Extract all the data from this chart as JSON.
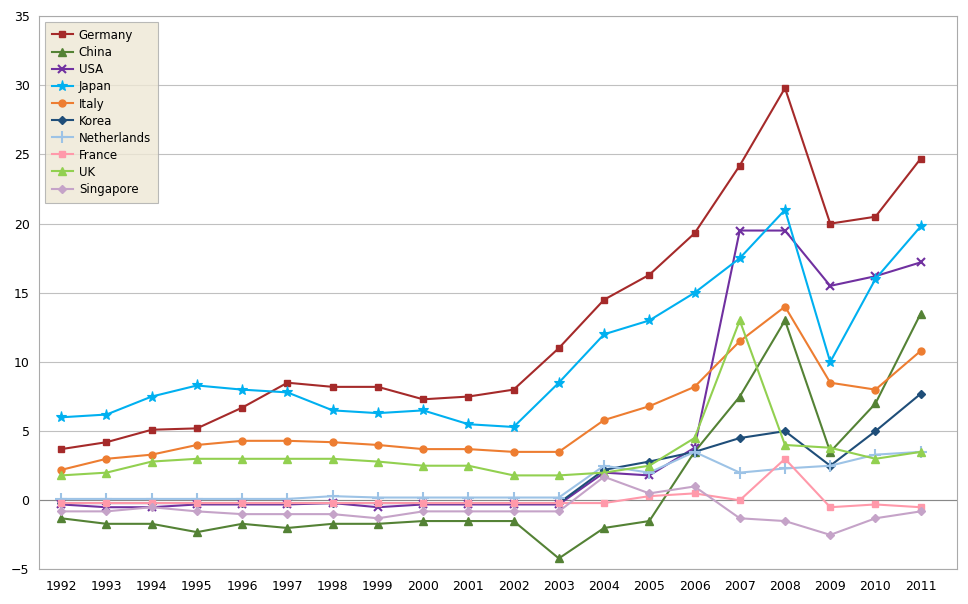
{
  "years": [
    1992,
    1993,
    1994,
    1995,
    1996,
    1997,
    1998,
    1999,
    2000,
    2001,
    2002,
    2003,
    2004,
    2005,
    2006,
    2007,
    2008,
    2009,
    2010,
    2011
  ],
  "series": {
    "Germany": {
      "color": "#A52A2A",
      "marker": "s",
      "markersize": 5,
      "data": [
        3.7,
        4.2,
        5.1,
        5.2,
        6.7,
        8.5,
        8.2,
        8.2,
        7.3,
        7.5,
        8.0,
        11.0,
        14.5,
        16.3,
        19.3,
        24.2,
        29.8,
        20.0,
        20.5,
        24.7
      ]
    },
    "China": {
      "color": "#548235",
      "marker": "^",
      "markersize": 6,
      "data": [
        -1.3,
        -1.7,
        -1.7,
        -2.3,
        -1.7,
        -2.0,
        -1.7,
        -1.7,
        -1.5,
        -1.5,
        -1.5,
        -4.2,
        -2.0,
        -1.5,
        3.5,
        7.5,
        13.0,
        3.5,
        7.0,
        13.5
      ]
    },
    "USA": {
      "color": "#7030A0",
      "marker": "x",
      "markersize": 6,
      "data": [
        -0.3,
        -0.5,
        -0.5,
        -0.3,
        -0.3,
        -0.3,
        -0.2,
        -0.5,
        -0.3,
        -0.3,
        -0.3,
        -0.3,
        2.0,
        1.8,
        3.8,
        19.5,
        19.5,
        15.5,
        16.2,
        17.2
      ]
    },
    "Japan": {
      "color": "#00B0F0",
      "marker": "*",
      "markersize": 7,
      "data": [
        6.0,
        6.2,
        7.5,
        8.3,
        8.0,
        7.8,
        6.5,
        6.3,
        6.5,
        5.5,
        5.3,
        8.5,
        12.0,
        13.0,
        15.0,
        17.5,
        21.0,
        10.0,
        16.0,
        19.8
      ]
    },
    "Italy": {
      "color": "#ED7D31",
      "marker": "o",
      "markersize": 5,
      "data": [
        2.2,
        3.0,
        3.3,
        4.0,
        4.3,
        4.3,
        4.2,
        4.0,
        3.7,
        3.7,
        3.5,
        3.5,
        5.8,
        6.8,
        8.2,
        11.5,
        14.0,
        8.5,
        8.0,
        10.8
      ]
    },
    "Korea": {
      "color": "#1F4E79",
      "marker": "D",
      "markersize": 4,
      "data": [
        -0.2,
        -0.2,
        -0.2,
        -0.2,
        -0.2,
        -0.2,
        -0.2,
        -0.2,
        -0.2,
        -0.2,
        -0.2,
        -0.2,
        2.2,
        2.8,
        3.5,
        4.5,
        5.0,
        2.5,
        5.0,
        7.7
      ]
    },
    "Netherlands": {
      "color": "#9DC3E6",
      "marker": "+",
      "markersize": 7,
      "data": [
        0.1,
        0.1,
        0.1,
        0.1,
        0.1,
        0.1,
        0.3,
        0.2,
        0.2,
        0.2,
        0.2,
        0.2,
        2.5,
        2.0,
        3.5,
        2.0,
        2.3,
        2.5,
        3.3,
        3.5
      ]
    },
    "France": {
      "color": "#FF99AA",
      "marker": "s",
      "markersize": 4,
      "data": [
        -0.2,
        -0.2,
        -0.2,
        -0.2,
        -0.2,
        -0.2,
        -0.2,
        -0.2,
        -0.2,
        -0.2,
        -0.2,
        -0.2,
        -0.2,
        0.3,
        0.5,
        0.0,
        3.0,
        -0.5,
        -0.3,
        -0.5
      ]
    },
    "UK": {
      "color": "#92D050",
      "marker": "^",
      "markersize": 5,
      "data": [
        1.8,
        2.0,
        2.8,
        3.0,
        3.0,
        3.0,
        3.0,
        2.8,
        2.5,
        2.5,
        1.8,
        1.8,
        2.0,
        2.5,
        4.5,
        13.0,
        4.0,
        3.8,
        3.0,
        3.5
      ]
    },
    "Singapore": {
      "color": "#C5A3C8",
      "marker": "D",
      "markersize": 4,
      "data": [
        -0.8,
        -0.8,
        -0.5,
        -0.8,
        -1.0,
        -1.0,
        -1.0,
        -1.3,
        -0.8,
        -0.8,
        -0.8,
        -0.8,
        1.7,
        0.5,
        1.0,
        -1.3,
        -1.5,
        -2.5,
        -1.3,
        -0.8
      ]
    }
  },
  "ylim": [
    -5,
    35
  ],
  "yticks": [
    -5,
    0,
    5,
    10,
    15,
    20,
    25,
    30,
    35
  ],
  "xlim": [
    1991.5,
    2011.8
  ],
  "figure_bg": "#FFFFFF",
  "plot_bg": "#FFFFFF",
  "grid_color": "#C0C0C0",
  "legend_bg": "#EEE8D5",
  "legend_edge": "#AAAAAA"
}
